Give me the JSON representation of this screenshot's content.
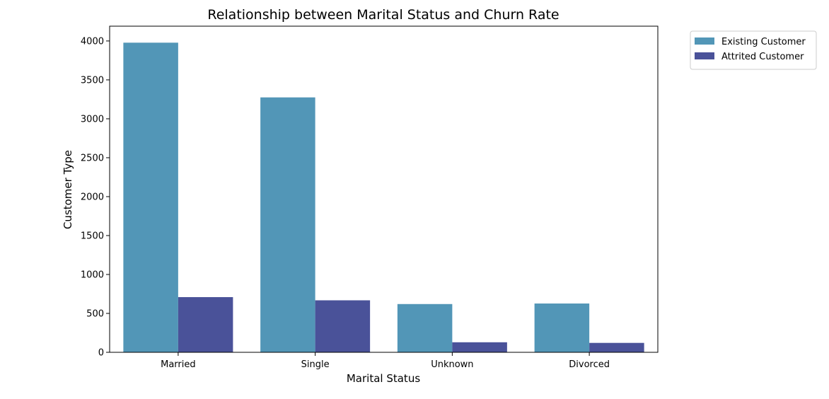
{
  "chart_data": {
    "type": "bar",
    "title": "Relationship between Marital Status and Churn Rate",
    "xlabel": "Marital Status",
    "ylabel": "Customer Type",
    "categories": [
      "Married",
      "Single",
      "Unknown",
      "Divorced"
    ],
    "series": [
      {
        "name": "Existing Customer",
        "color": "#5296b7",
        "values": [
          3978,
          3275,
          620,
          627
        ]
      },
      {
        "name": "Attrited Customer",
        "color": "#4a5299",
        "values": [
          709,
          668,
          129,
          121
        ]
      }
    ],
    "ylim": [
      0,
      4190
    ],
    "yticks": [
      0,
      500,
      1000,
      1500,
      2000,
      2500,
      3000,
      3500,
      4000
    ],
    "grid": false,
    "legend_position": "outside-top-right"
  }
}
